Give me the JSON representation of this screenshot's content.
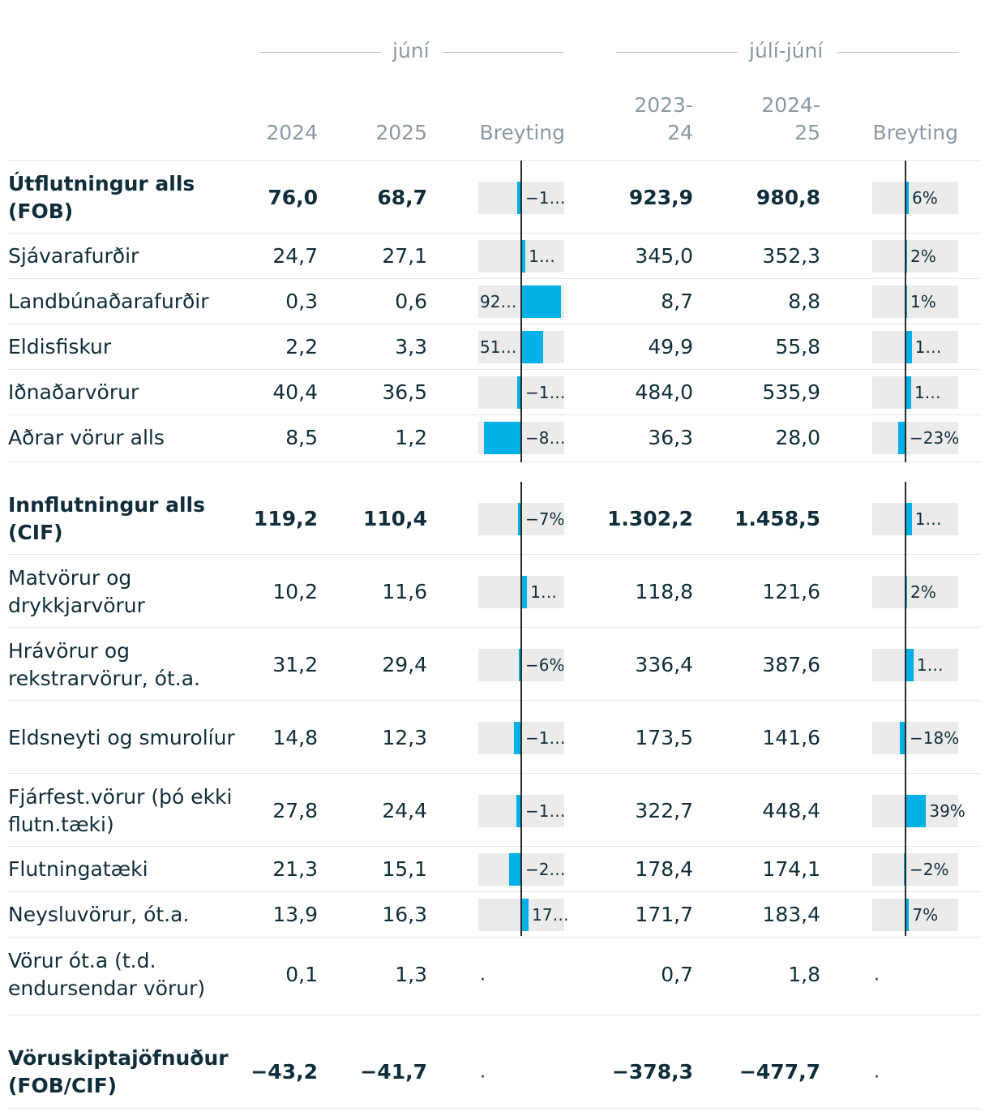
{
  "header": {
    "group1": "júní",
    "group2": "júlí-júní",
    "col_2024": "2024",
    "col_2025": "2025",
    "col_change1": "Breyting",
    "col_2324_a": "2023-",
    "col_2324_b": "24",
    "col_2425_a": "2024-",
    "col_2425_b": "25",
    "col_change2": "Breyting"
  },
  "chart_data": {
    "type": "table",
    "columns": [
      "júní 2024",
      "júní 2025",
      "júní Breyting",
      "júlí-júní 2023-24",
      "júlí-júní 2024-25",
      "júlí-júní Breyting"
    ],
    "bar_range_percent": [
      -100,
      100
    ],
    "rows": [
      {
        "label": "Útflutningur alls (FOB)",
        "bold": true,
        "v2024": "76,0",
        "v2025": "68,7",
        "c1": -9.6,
        "c1_text": "−1…",
        "v2324": "923,9",
        "v2425": "980,8",
        "c2": 6.2,
        "c2_text": "6%"
      },
      {
        "label": "Sjávarafurðir",
        "bold": false,
        "v2024": "24,7",
        "v2025": "27,1",
        "c1": 9.7,
        "c1_text": "1…",
        "v2324": "345,0",
        "v2425": "352,3",
        "c2": 2.1,
        "c2_text": "2%"
      },
      {
        "label": "Landbúnaðarafurðir",
        "bold": false,
        "v2024": "0,3",
        "v2025": "0,6",
        "c1": 92.0,
        "c1_text": "92…",
        "v2324": "8,7",
        "v2425": "8,8",
        "c2": 1.1,
        "c2_text": "1%"
      },
      {
        "label": "Eldisfiskur",
        "bold": false,
        "v2024": "2,2",
        "v2025": "3,3",
        "c1": 51.0,
        "c1_text": "51…",
        "v2324": "49,9",
        "v2425": "55,8",
        "c2": 11.8,
        "c2_text": "1…"
      },
      {
        "label": "Iðnaðarvörur",
        "bold": false,
        "v2024": "40,4",
        "v2025": "36,5",
        "c1": -9.7,
        "c1_text": "−1…",
        "v2324": "484,0",
        "v2425": "535,9",
        "c2": 10.7,
        "c2_text": "1…"
      },
      {
        "label": "Aðrar vörur alls",
        "bold": false,
        "v2024": "8,5",
        "v2025": "1,2",
        "c1": -86.0,
        "c1_text": "−8…",
        "v2324": "36,3",
        "v2425": "28,0",
        "c2": -23.0,
        "c2_text": "−23%"
      },
      {
        "label": "Innflutningur alls (CIF)",
        "bold": true,
        "v2024": "119,2",
        "v2025": "110,4",
        "c1": -7.0,
        "c1_text": "−7%",
        "v2324": "1.302,2",
        "v2425": "1.458,5",
        "c2": 12.0,
        "c2_text": "1…"
      },
      {
        "label": "Matvörur og drykkjarvörur",
        "bold": false,
        "v2024": "10,2",
        "v2025": "11,6",
        "c1": 13.7,
        "c1_text": "1…",
        "v2324": "118,8",
        "v2425": "121,6",
        "c2": 2.4,
        "c2_text": "2%"
      },
      {
        "label": "Hrávörur og rekstrarvörur, ót.a.",
        "bold": false,
        "v2024": "31,2",
        "v2025": "29,4",
        "c1": -6.0,
        "c1_text": "−6%",
        "v2324": "336,4",
        "v2425": "387,6",
        "c2": 15.2,
        "c2_text": "1…"
      },
      {
        "label": "Eldsneyti og smurolíur",
        "bold": false,
        "v2024": "14,8",
        "v2025": "12,3",
        "c1": -16.9,
        "c1_text": "−1…",
        "v2324": "173,5",
        "v2425": "141,6",
        "c2": -18.0,
        "c2_text": "−18%"
      },
      {
        "label": "Fjárfest.vörur (þó ekki flutn.tæki)",
        "bold": false,
        "v2024": "27,8",
        "v2025": "24,4",
        "c1": -12.2,
        "c1_text": "−1…",
        "v2324": "322,7",
        "v2425": "448,4",
        "c2": 39.0,
        "c2_text": "39%"
      },
      {
        "label": "Flutningatæki",
        "bold": false,
        "v2024": "21,3",
        "v2025": "15,1",
        "c1": -29.1,
        "c1_text": "−2…",
        "v2324": "178,4",
        "v2425": "174,1",
        "c2": -2.4,
        "c2_text": "−2%"
      },
      {
        "label": "Neysluvörur, ót.a.",
        "bold": false,
        "v2024": "13,9",
        "v2025": "16,3",
        "c1": 17.3,
        "c1_text": "17…",
        "v2324": "171,7",
        "v2425": "183,4",
        "c2": 6.8,
        "c2_text": "7%"
      },
      {
        "label": "Vörur ót.a (t.d. endursendar vörur)",
        "bold": false,
        "v2024": "0,1",
        "v2025": "1,3",
        "c1": null,
        "c1_text": ".",
        "v2324": "0,7",
        "v2425": "1,8",
        "c2": null,
        "c2_text": "."
      },
      {
        "label": "Vöruskiptajöfnuður (FOB/CIF)",
        "bold": true,
        "v2024": "−43,2",
        "v2025": "−41,7",
        "c1": null,
        "c1_text": ".",
        "v2324": "−378,3",
        "v2425": "−477,7",
        "c2": null,
        "c2_text": "."
      }
    ]
  }
}
